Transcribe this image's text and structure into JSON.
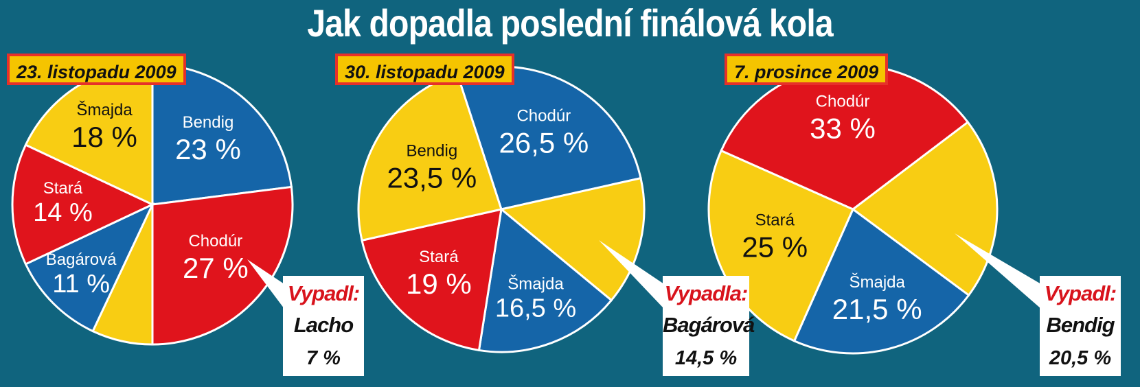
{
  "title": "Jak dopadla poslední finálová kola",
  "colors": {
    "background": "#10647e",
    "blue": "#1565a8",
    "red": "#e0141c",
    "yellow": "#f8cd13",
    "white": "#ffffff",
    "label_dark": "#111111"
  },
  "chart_data": [
    {
      "type": "pie",
      "title": "23. listopadu 2009",
      "slices": [
        {
          "name": "Bendig",
          "value": 23,
          "label": "23 %",
          "color": "blue"
        },
        {
          "name": "Chodúr",
          "value": 27,
          "label": "27 %",
          "color": "red"
        },
        {
          "name": "Lacho",
          "value": 7,
          "label": "7 %",
          "color": "yellow"
        },
        {
          "name": "Bagárová",
          "value": 11,
          "label": "11 %",
          "color": "blue"
        },
        {
          "name": "Stará",
          "value": 14,
          "label": "14 %",
          "color": "red"
        },
        {
          "name": "Šmajda",
          "value": 18,
          "label": "18 %",
          "color": "yellow"
        }
      ],
      "eliminated": {
        "heading": "Vypadl:",
        "name": "Lacho",
        "value_label": "7 %"
      }
    },
    {
      "type": "pie",
      "title": "30. listopadu 2009",
      "slices": [
        {
          "name": "Chodúr",
          "value": 26.5,
          "label": "26,5 %",
          "color": "blue"
        },
        {
          "name": "Bagárová",
          "value": 14.5,
          "label": "14,5 %",
          "color": "yellow"
        },
        {
          "name": "Šmajda",
          "value": 16.5,
          "label": "16,5 %",
          "color": "blue"
        },
        {
          "name": "Stará",
          "value": 19,
          "label": "19 %",
          "color": "red"
        },
        {
          "name": "Bendig",
          "value": 23.5,
          "label": "23,5 %",
          "color": "yellow"
        }
      ],
      "eliminated": {
        "heading": "Vypadla:",
        "name": "Bagárová",
        "value_label": "14,5 %"
      }
    },
    {
      "type": "pie",
      "title": "7. prosince 2009",
      "slices": [
        {
          "name": "Chodúr",
          "value": 33,
          "label": "33 %",
          "color": "red"
        },
        {
          "name": "Bendig",
          "value": 20.5,
          "label": "20,5 %",
          "color": "yellow"
        },
        {
          "name": "Šmajda",
          "value": 21.5,
          "label": "21,5 %",
          "color": "blue"
        },
        {
          "name": "Stará",
          "value": 25,
          "label": "25 %",
          "color": "yellow"
        }
      ],
      "eliminated": {
        "heading": "Vypadl:",
        "name": "Bendig",
        "value_label": "20,5 %"
      }
    }
  ]
}
